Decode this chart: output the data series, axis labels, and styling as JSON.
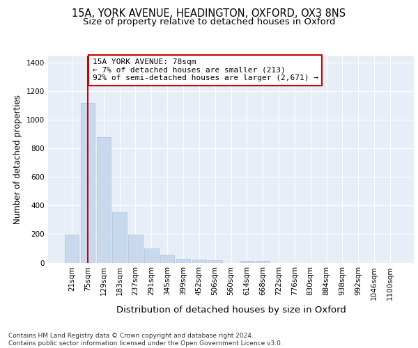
{
  "title_line1": "15A, YORK AVENUE, HEADINGTON, OXFORD, OX3 8NS",
  "title_line2": "Size of property relative to detached houses in Oxford",
  "xlabel": "Distribution of detached houses by size in Oxford",
  "ylabel": "Number of detached properties",
  "categories": [
    "21sqm",
    "75sqm",
    "129sqm",
    "183sqm",
    "237sqm",
    "291sqm",
    "345sqm",
    "399sqm",
    "452sqm",
    "506sqm",
    "560sqm",
    "614sqm",
    "668sqm",
    "722sqm",
    "776sqm",
    "830sqm",
    "884sqm",
    "938sqm",
    "992sqm",
    "1046sqm",
    "1100sqm"
  ],
  "values": [
    197,
    1120,
    880,
    355,
    195,
    100,
    55,
    25,
    20,
    17,
    0,
    12,
    12,
    0,
    0,
    0,
    0,
    0,
    0,
    0,
    0
  ],
  "bar_color": "#c9d9ed",
  "bar_edgecolor": "#a8c0d8",
  "vline_x": 1,
  "vline_color": "#cc0000",
  "annotation_text": "15A YORK AVENUE: 78sqm\n← 7% of detached houses are smaller (213)\n92% of semi-detached houses are larger (2,671) →",
  "annotation_box_color": "#ffffff",
  "annotation_box_edgecolor": "#cc0000",
  "ylim": [
    0,
    1450
  ],
  "yticks": [
    0,
    200,
    400,
    600,
    800,
    1000,
    1200,
    1400
  ],
  "background_color": "#e8eef7",
  "footer_text": "Contains HM Land Registry data © Crown copyright and database right 2024.\nContains public sector information licensed under the Open Government Licence v3.0.",
  "title_fontsize": 10.5,
  "subtitle_fontsize": 9.5,
  "xlabel_fontsize": 9.5,
  "ylabel_fontsize": 8.5,
  "tick_fontsize": 7.5,
  "annotation_fontsize": 8,
  "footer_fontsize": 6.5
}
